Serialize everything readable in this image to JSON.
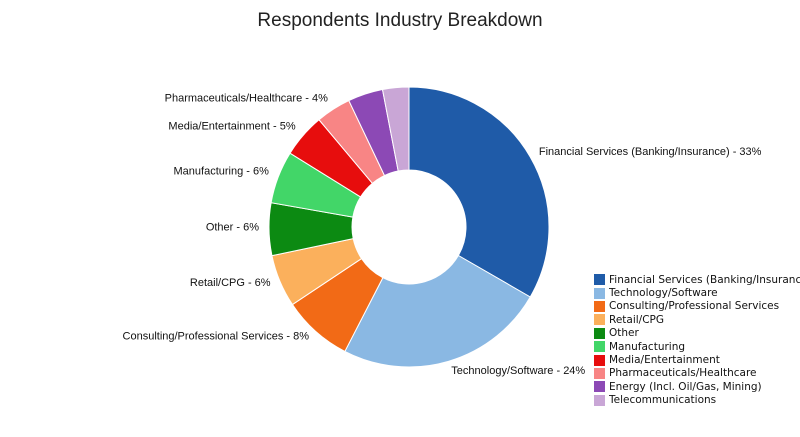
{
  "chart_data": {
    "type": "pie",
    "title": "Respondents Industry Breakdown",
    "donut": true,
    "slices": [
      {
        "label": "Financial Services (Banking/Insurance)",
        "legend": "Financial Services (Banking/Insurance",
        "value": 33,
        "color": "#1f5ba8"
      },
      {
        "label": "Technology/Software",
        "legend": "Technology/Software",
        "value": 24,
        "color": "#8ab8e3"
      },
      {
        "label": "Consulting/Professional Services",
        "legend": "Consulting/Professional Services",
        "value": 8,
        "color": "#f26a16"
      },
      {
        "label": "Retail/CPG",
        "legend": "Retail/CPG",
        "value": 6,
        "color": "#fbb05c"
      },
      {
        "label": "Other",
        "legend": "Other",
        "value": 6,
        "color": "#0c8a12"
      },
      {
        "label": "Manufacturing",
        "legend": "Manufacturing",
        "value": 6,
        "color": "#42d668"
      },
      {
        "label": "Media/Entertainment",
        "legend": "Media/Entertainment",
        "value": 5,
        "color": "#e70d0d"
      },
      {
        "label": "Pharmaceuticals/Healthcare",
        "legend": "Pharmaceuticals/Healthcare",
        "value": 4,
        "color": "#f88585"
      },
      {
        "label": "Energy (Incl. Oil/Gas, Mining)",
        "legend": "Energy (Incl. Oil/Gas, Mining)",
        "value": 4,
        "color": "#8c49b5"
      },
      {
        "label": "Telecommunications",
        "legend": "Telecommunications",
        "value": 3,
        "color": "#c9a6d6"
      }
    ],
    "data_labels": [
      {
        "slice": 0,
        "text": "Financial Services (Banking/Insurance) - 33%"
      },
      {
        "slice": 1,
        "text": "Technology/Software - 24%"
      },
      {
        "slice": 2,
        "text": "Consulting/Professional Services - 8%"
      },
      {
        "slice": 3,
        "text": "Retail/CPG - 6%"
      },
      {
        "slice": 4,
        "text": "Other - 6%"
      },
      {
        "slice": 5,
        "text": "Manufacturing - 6%"
      },
      {
        "slice": 6,
        "text": "Media/Entertainment - 5%"
      },
      {
        "slice": 7,
        "text": "Pharmaceuticals/Healthcare - 4%"
      }
    ],
    "legend_position": "bottom-right"
  }
}
